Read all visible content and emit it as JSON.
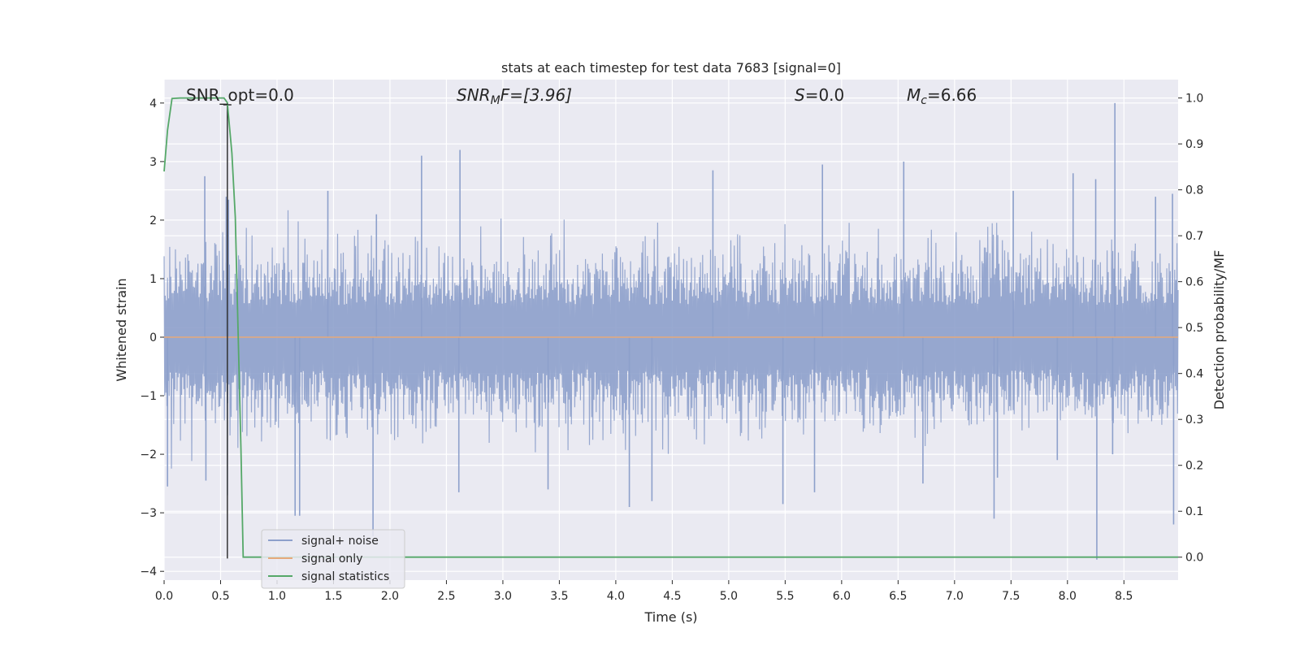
{
  "chart_data": {
    "type": "line",
    "title": "stats at each timestep for test data 7683 [signal=0]",
    "xlabel": "Time (s)",
    "ylabel": "Whitened strain",
    "ylabel_right": "Detection probability/MF",
    "xlim": [
      0.0,
      8.98
    ],
    "ylim": [
      -4.15,
      4.4
    ],
    "ylim_right": [
      -0.05,
      1.04
    ],
    "xticks": [
      "0.0",
      "0.5",
      "1.0",
      "1.5",
      "2.0",
      "2.5",
      "3.0",
      "3.5",
      "4.0",
      "4.5",
      "5.0",
      "5.5",
      "6.0",
      "6.5",
      "7.0",
      "7.5",
      "8.0",
      "8.5"
    ],
    "yticks": [
      "4",
      "3",
      "2",
      "1",
      "0",
      "−1",
      "−2",
      "−3",
      "−4"
    ],
    "yticks_right": [
      "1.0",
      "0.9",
      "0.8",
      "0.7",
      "0.6",
      "0.5",
      "0.4",
      "0.3",
      "0.2",
      "0.1",
      "0.0"
    ],
    "grid": true,
    "legend_position": "lower-left",
    "annotations": {
      "snr_opt": "SNR_opt=0.0",
      "snr_mf_main": "SNR",
      "snr_mf_sub": "M",
      "snr_mf_tail": "F=[3.96]",
      "s_main": "S",
      "s_tail": "=0.0",
      "mc_main": "M",
      "mc_sub": "c",
      "mc_tail": "=6.66"
    },
    "series": [
      {
        "name": "signal+ noise",
        "color": "#8da0cb",
        "axis": "left",
        "description_values": "noise band roughly between -1.5 and 1.5 with spikes",
        "spikes": [
          [
            0.03,
            -2.55
          ],
          [
            0.36,
            2.75
          ],
          [
            0.37,
            -2.45
          ],
          [
            0.55,
            2.4
          ],
          [
            0.56,
            -2.7
          ],
          [
            0.57,
            2.35
          ],
          [
            1.16,
            -3.05
          ],
          [
            1.2,
            -3.05
          ],
          [
            1.45,
            2.5
          ],
          [
            1.85,
            -3.4
          ],
          [
            1.88,
            2.1
          ],
          [
            2.28,
            3.1
          ],
          [
            2.62,
            3.2
          ],
          [
            2.61,
            -2.65
          ],
          [
            3.4,
            -2.6
          ],
          [
            4.12,
            -2.9
          ],
          [
            4.86,
            2.85
          ],
          [
            4.32,
            -2.8
          ],
          [
            5.48,
            -2.85
          ],
          [
            5.76,
            -2.65
          ],
          [
            5.83,
            2.95
          ],
          [
            6.55,
            3.0
          ],
          [
            6.72,
            -2.5
          ],
          [
            7.35,
            -3.1
          ],
          [
            7.38,
            -2.4
          ],
          [
            7.52,
            2.5
          ],
          [
            7.91,
            -2.1
          ],
          [
            8.05,
            2.8
          ],
          [
            8.26,
            -3.8
          ],
          [
            8.25,
            2.7
          ],
          [
            8.42,
            4.0
          ],
          [
            8.4,
            -2.0
          ],
          [
            8.78,
            2.4
          ],
          [
            8.93,
            2.45
          ],
          [
            8.94,
            -3.2
          ]
        ]
      },
      {
        "name": "signal only",
        "color": "#e5a97a",
        "axis": "left",
        "x": [
          0.0,
          8.98
        ],
        "y": [
          0.0,
          0.0
        ]
      },
      {
        "name": "signal statistics",
        "color": "#55a868",
        "axis": "right",
        "x": [
          0.0,
          0.03,
          0.07,
          0.14,
          0.3,
          0.45,
          0.53,
          0.56,
          0.6,
          0.63,
          0.68,
          0.7,
          0.75,
          1.0,
          2.0,
          4.0,
          6.0,
          8.0,
          8.98
        ],
        "y": [
          0.84,
          0.93,
          0.999,
          1.0,
          1.0,
          1.0,
          1.0,
          0.99,
          0.88,
          0.74,
          0.24,
          0.0,
          0.0,
          0.0,
          0.0,
          0.0,
          0.0,
          0.0,
          0.0
        ]
      },
      {
        "name": "",
        "color": "#333333",
        "axis": "left",
        "vline_x": 0.56,
        "vline_y": [
          -3.78,
          3.97
        ]
      }
    ]
  }
}
